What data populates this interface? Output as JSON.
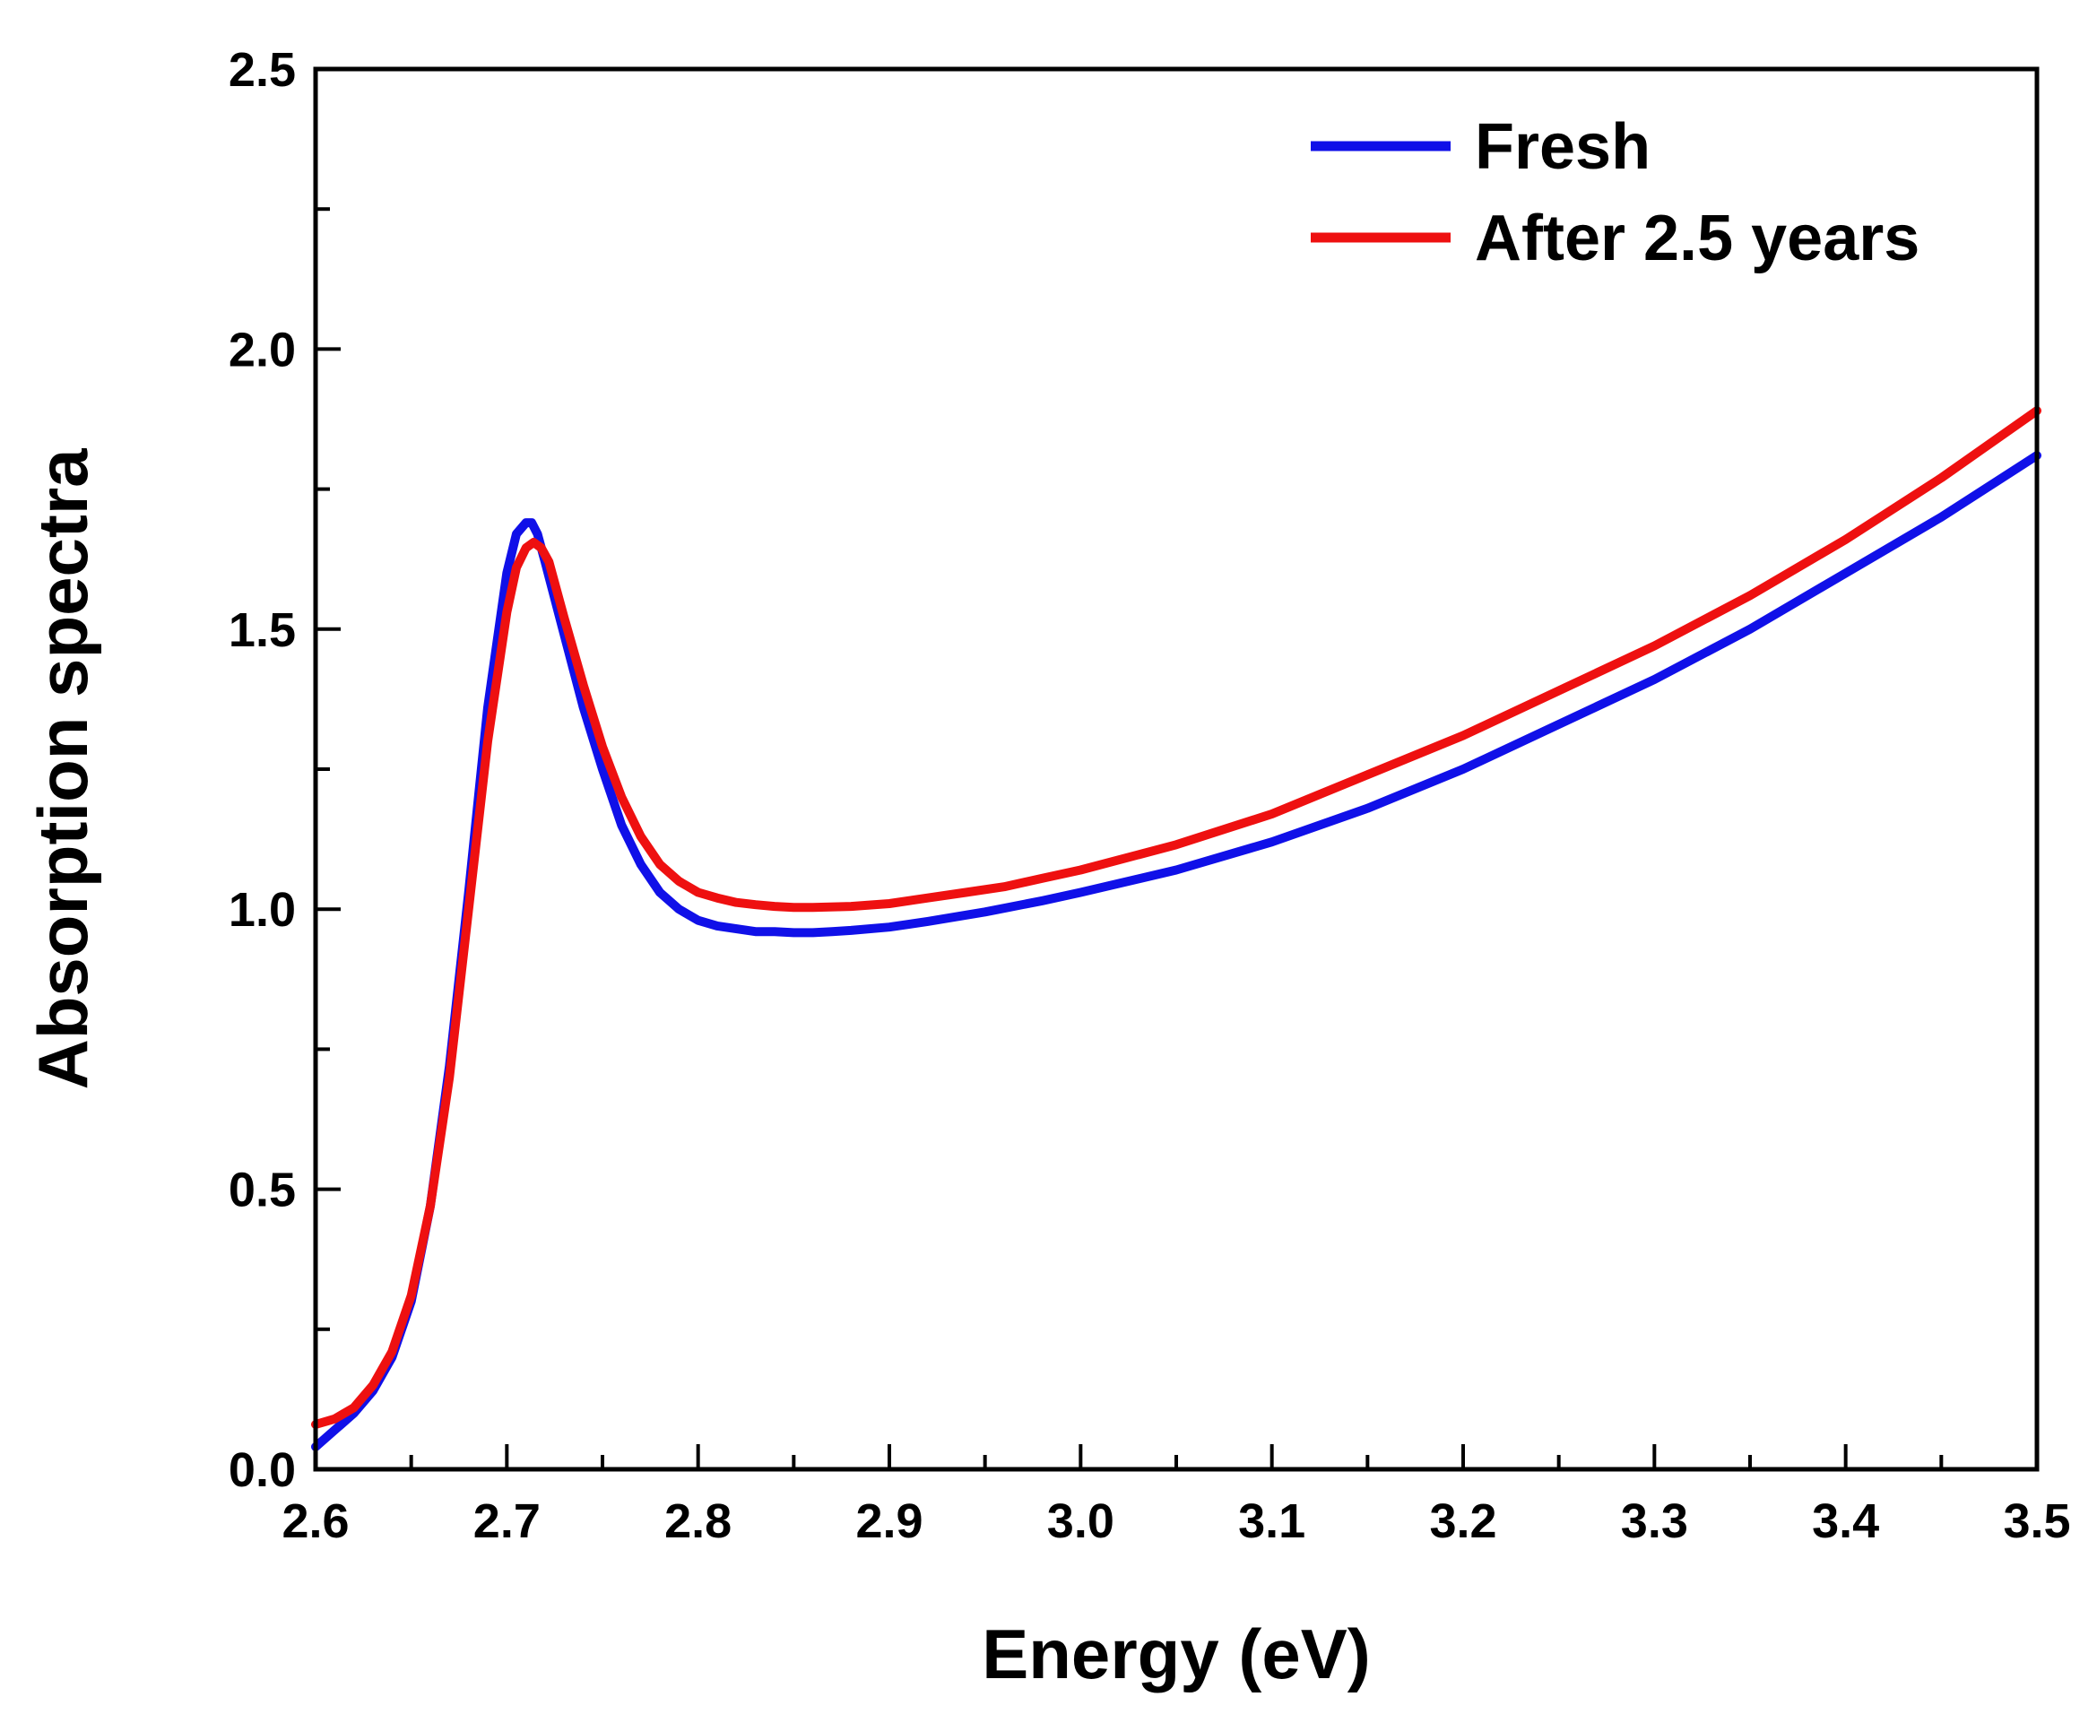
{
  "chart_data": {
    "type": "line",
    "title": "",
    "xlabel": "Energy (eV)",
    "ylabel": "Absorption spectra",
    "xlim": [
      2.6,
      3.5
    ],
    "ylim": [
      0.0,
      2.5
    ],
    "xticks": [
      2.6,
      2.7,
      2.8,
      2.9,
      3.0,
      3.1,
      3.2,
      3.3,
      3.4,
      3.5
    ],
    "xtick_labels": [
      "2.6",
      "2.7",
      "2.8",
      "2.9",
      "3.0",
      "3.1",
      "3.2",
      "3.3",
      "3.4",
      "3.5"
    ],
    "yticks": [
      0.0,
      0.5,
      1.0,
      1.5,
      2.0,
      2.5
    ],
    "ytick_labels": [
      "0.0",
      "0.5",
      "1.0",
      "1.5",
      "2.0",
      "2.5"
    ],
    "x_minor_step": 0.05,
    "y_minor_step": 0.25,
    "grid": false,
    "legend_position": "top-right",
    "series": [
      {
        "name": "Fresh",
        "color": "#1010e8",
        "x": [
          2.6,
          2.61,
          2.62,
          2.63,
          2.64,
          2.65,
          2.66,
          2.67,
          2.68,
          2.69,
          2.7,
          2.705,
          2.71,
          2.713,
          2.716,
          2.72,
          2.73,
          2.74,
          2.75,
          2.76,
          2.77,
          2.78,
          2.79,
          2.8,
          2.81,
          2.82,
          2.83,
          2.84,
          2.85,
          2.86,
          2.87,
          2.88,
          2.9,
          2.92,
          2.95,
          2.98,
          3.0,
          3.05,
          3.1,
          3.15,
          3.2,
          3.25,
          3.3,
          3.35,
          3.4,
          3.45,
          3.5
        ],
        "y": [
          0.04,
          0.07,
          0.1,
          0.14,
          0.2,
          0.3,
          0.47,
          0.72,
          1.03,
          1.36,
          1.6,
          1.67,
          1.69,
          1.69,
          1.67,
          1.62,
          1.49,
          1.36,
          1.25,
          1.15,
          1.08,
          1.03,
          1.0,
          0.98,
          0.97,
          0.965,
          0.96,
          0.96,
          0.958,
          0.958,
          0.96,
          0.962,
          0.968,
          0.978,
          0.995,
          1.015,
          1.03,
          1.07,
          1.12,
          1.18,
          1.25,
          1.33,
          1.41,
          1.5,
          1.6,
          1.7,
          1.81
        ]
      },
      {
        "name": "After 2.5 years",
        "color": "#ee1010",
        "x": [
          2.6,
          2.61,
          2.62,
          2.63,
          2.64,
          2.65,
          2.66,
          2.67,
          2.68,
          2.69,
          2.7,
          2.705,
          2.71,
          2.714,
          2.718,
          2.722,
          2.73,
          2.74,
          2.75,
          2.76,
          2.77,
          2.78,
          2.79,
          2.8,
          2.81,
          2.82,
          2.83,
          2.84,
          2.85,
          2.86,
          2.88,
          2.9,
          2.92,
          2.94,
          2.96,
          2.98,
          3.0,
          3.05,
          3.1,
          3.15,
          3.2,
          3.25,
          3.3,
          3.35,
          3.4,
          3.45,
          3.5
        ],
        "y": [
          0.08,
          0.09,
          0.11,
          0.15,
          0.21,
          0.31,
          0.47,
          0.7,
          1.0,
          1.3,
          1.53,
          1.61,
          1.645,
          1.655,
          1.645,
          1.62,
          1.52,
          1.4,
          1.29,
          1.2,
          1.13,
          1.08,
          1.05,
          1.03,
          1.02,
          1.012,
          1.008,
          1.005,
          1.003,
          1.003,
          1.005,
          1.01,
          1.02,
          1.03,
          1.04,
          1.055,
          1.07,
          1.115,
          1.17,
          1.24,
          1.31,
          1.39,
          1.47,
          1.56,
          1.66,
          1.77,
          1.89
        ]
      }
    ]
  }
}
